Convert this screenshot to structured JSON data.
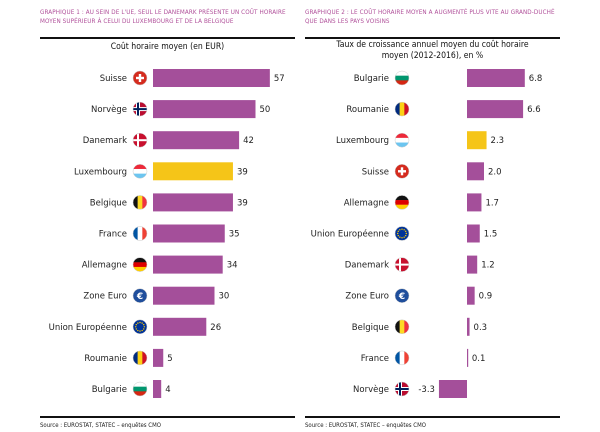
{
  "colors": {
    "bar": "#a44f9a",
    "highlight": "#f5c518",
    "header": "#b0509a"
  },
  "chart_data": [
    {
      "type": "bar",
      "orientation": "horizontal",
      "header": "Graphique 1 : Au sein de l'UE, seul le Danemark présente un coût horaire moyen supérieur à celui du Luxembourg et de la Belgique",
      "title": "Coût horaire moyen (en EUR)",
      "source": "Source : EUROSTAT, STATEC – enquêtes CMO",
      "categories": [
        "Suisse",
        "Norvège",
        "Danemark",
        "Luxembourg",
        "Belgique",
        "France",
        "Allemagne",
        "Zone Euro",
        "Union Européenne",
        "Roumanie",
        "Bulgarie"
      ],
      "flags": [
        "ch",
        "no",
        "dk",
        "lu",
        "be",
        "fr",
        "de",
        "euro",
        "eu",
        "ro",
        "bg"
      ],
      "values": [
        57,
        50,
        42,
        39,
        39,
        35,
        34,
        30,
        26,
        5,
        4
      ],
      "highlight": "Luxembourg",
      "xlim": [
        0,
        60
      ]
    },
    {
      "type": "bar",
      "orientation": "horizontal",
      "header": "Graphique 2 : Le coût horaire moyen a augmenté plus vite au Grand-Duché que dans les pays voisins",
      "title": "Taux de croissance annuel moyen du coût horaire moyen (2012-2016), en %",
      "source": "Source : EUROSTAT, STATEC – enquêtes CMO",
      "categories": [
        "Bulgarie",
        "Roumanie",
        "Luxembourg",
        "Suisse",
        "Allemagne",
        "Union Européenne",
        "Danemark",
        "Zone Euro",
        "Belgique",
        "France",
        "Norvège"
      ],
      "flags": [
        "bg",
        "ro",
        "lu",
        "ch",
        "de",
        "eu",
        "dk",
        "euro",
        "be",
        "fr",
        "no"
      ],
      "values": [
        6.8,
        6.6,
        2.3,
        2.0,
        1.7,
        1.5,
        1.2,
        0.9,
        0.3,
        0.1,
        -3.3
      ],
      "labels": [
        "6.8",
        "6.6",
        "2.3",
        "2.0",
        "1.7",
        "1.5",
        "1.2",
        "0.9",
        "0.3",
        "0.1",
        "-3.3"
      ],
      "highlight": "Luxembourg",
      "xlim": [
        -4,
        7
      ]
    }
  ]
}
